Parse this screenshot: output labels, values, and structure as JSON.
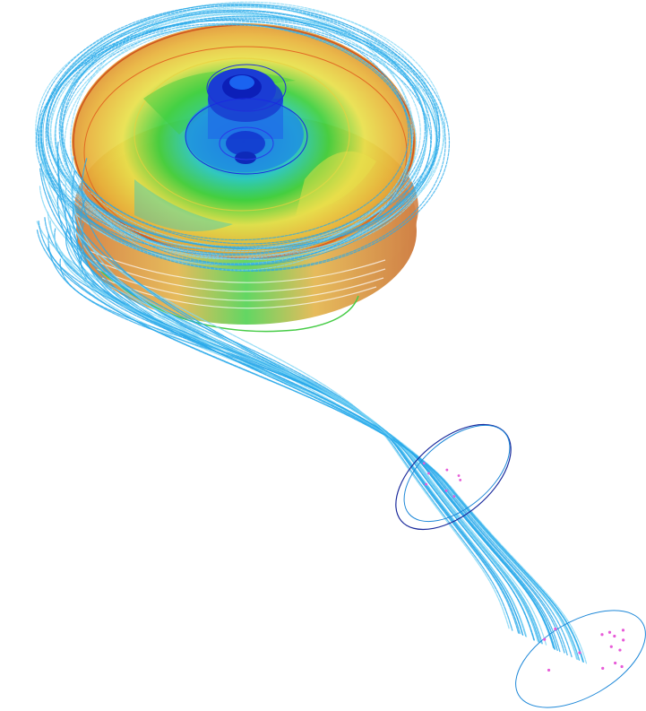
{
  "scene": {
    "subject": "cfd-pump-streamline-visualization",
    "background": "#ffffff",
    "colors": {
      "streamline": "#29a9ea",
      "streamline_light": "#7fd6f5",
      "ring_dark": "#1a2a9c",
      "ring_light": "#1e88d8",
      "seed_point": "#e75bd8",
      "impeller_colormap": [
        "#e07a2e",
        "#e8b23a",
        "#e8e04a",
        "#3ccf3c",
        "#27c7c9",
        "#1f7fe6",
        "#1730c9"
      ]
    }
  }
}
